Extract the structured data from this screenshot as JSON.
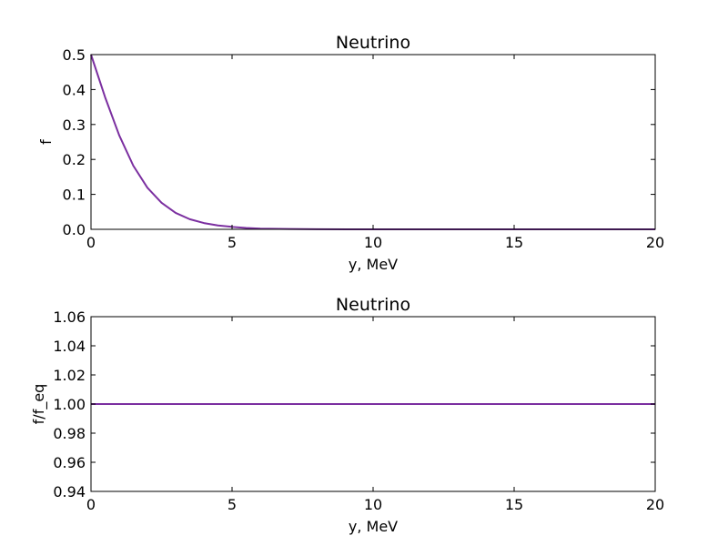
{
  "chart_data": [
    {
      "type": "line",
      "title": "Neutrino",
      "xlabel": "y, MeV",
      "ylabel": "f",
      "xlim": [
        0,
        20
      ],
      "ylim": [
        0,
        0.5
      ],
      "xticks": [
        0,
        5,
        10,
        15,
        20
      ],
      "xtick_labels": [
        "0",
        "5",
        "10",
        "15",
        "20"
      ],
      "yticks": [
        0,
        0.1,
        0.2,
        0.3,
        0.4,
        0.5
      ],
      "ytick_labels": [
        "0.0",
        "0.1",
        "0.2",
        "0.3",
        "0.4",
        "0.5"
      ],
      "grid": false,
      "series": [
        {
          "color": "#7b2fa0",
          "x": [
            0,
            0.5,
            1,
            1.5,
            2,
            2.5,
            3,
            3.5,
            4,
            4.5,
            5,
            5.5,
            6,
            7,
            8,
            10,
            12,
            14,
            16,
            18,
            20
          ],
          "y": [
            0.5,
            0.378,
            0.269,
            0.182,
            0.119,
            0.076,
            0.047,
            0.029,
            0.018,
            0.011,
            0.007,
            0.004,
            0.002,
            0.001,
            0.0003,
            0.0,
            0.0,
            0.0,
            0.0,
            0.0,
            0.0
          ]
        }
      ]
    },
    {
      "type": "line",
      "title": "Neutrino",
      "xlabel": "y, MeV",
      "ylabel": "f/f_eq",
      "xlim": [
        0,
        20
      ],
      "ylim": [
        0.94,
        1.06
      ],
      "xticks": [
        0,
        5,
        10,
        15,
        20
      ],
      "xtick_labels": [
        "0",
        "5",
        "10",
        "15",
        "20"
      ],
      "yticks": [
        0.94,
        0.96,
        0.98,
        1.0,
        1.02,
        1.04,
        1.06
      ],
      "ytick_labels": [
        "0.94",
        "0.96",
        "0.98",
        "1.00",
        "1.02",
        "1.04",
        "1.06"
      ],
      "grid": false,
      "series": [
        {
          "color": "#7b2fa0",
          "x": [
            0,
            5,
            10,
            15,
            20
          ],
          "y": [
            1.0,
            1.0,
            1.0,
            1.0,
            1.0
          ]
        }
      ]
    }
  ]
}
